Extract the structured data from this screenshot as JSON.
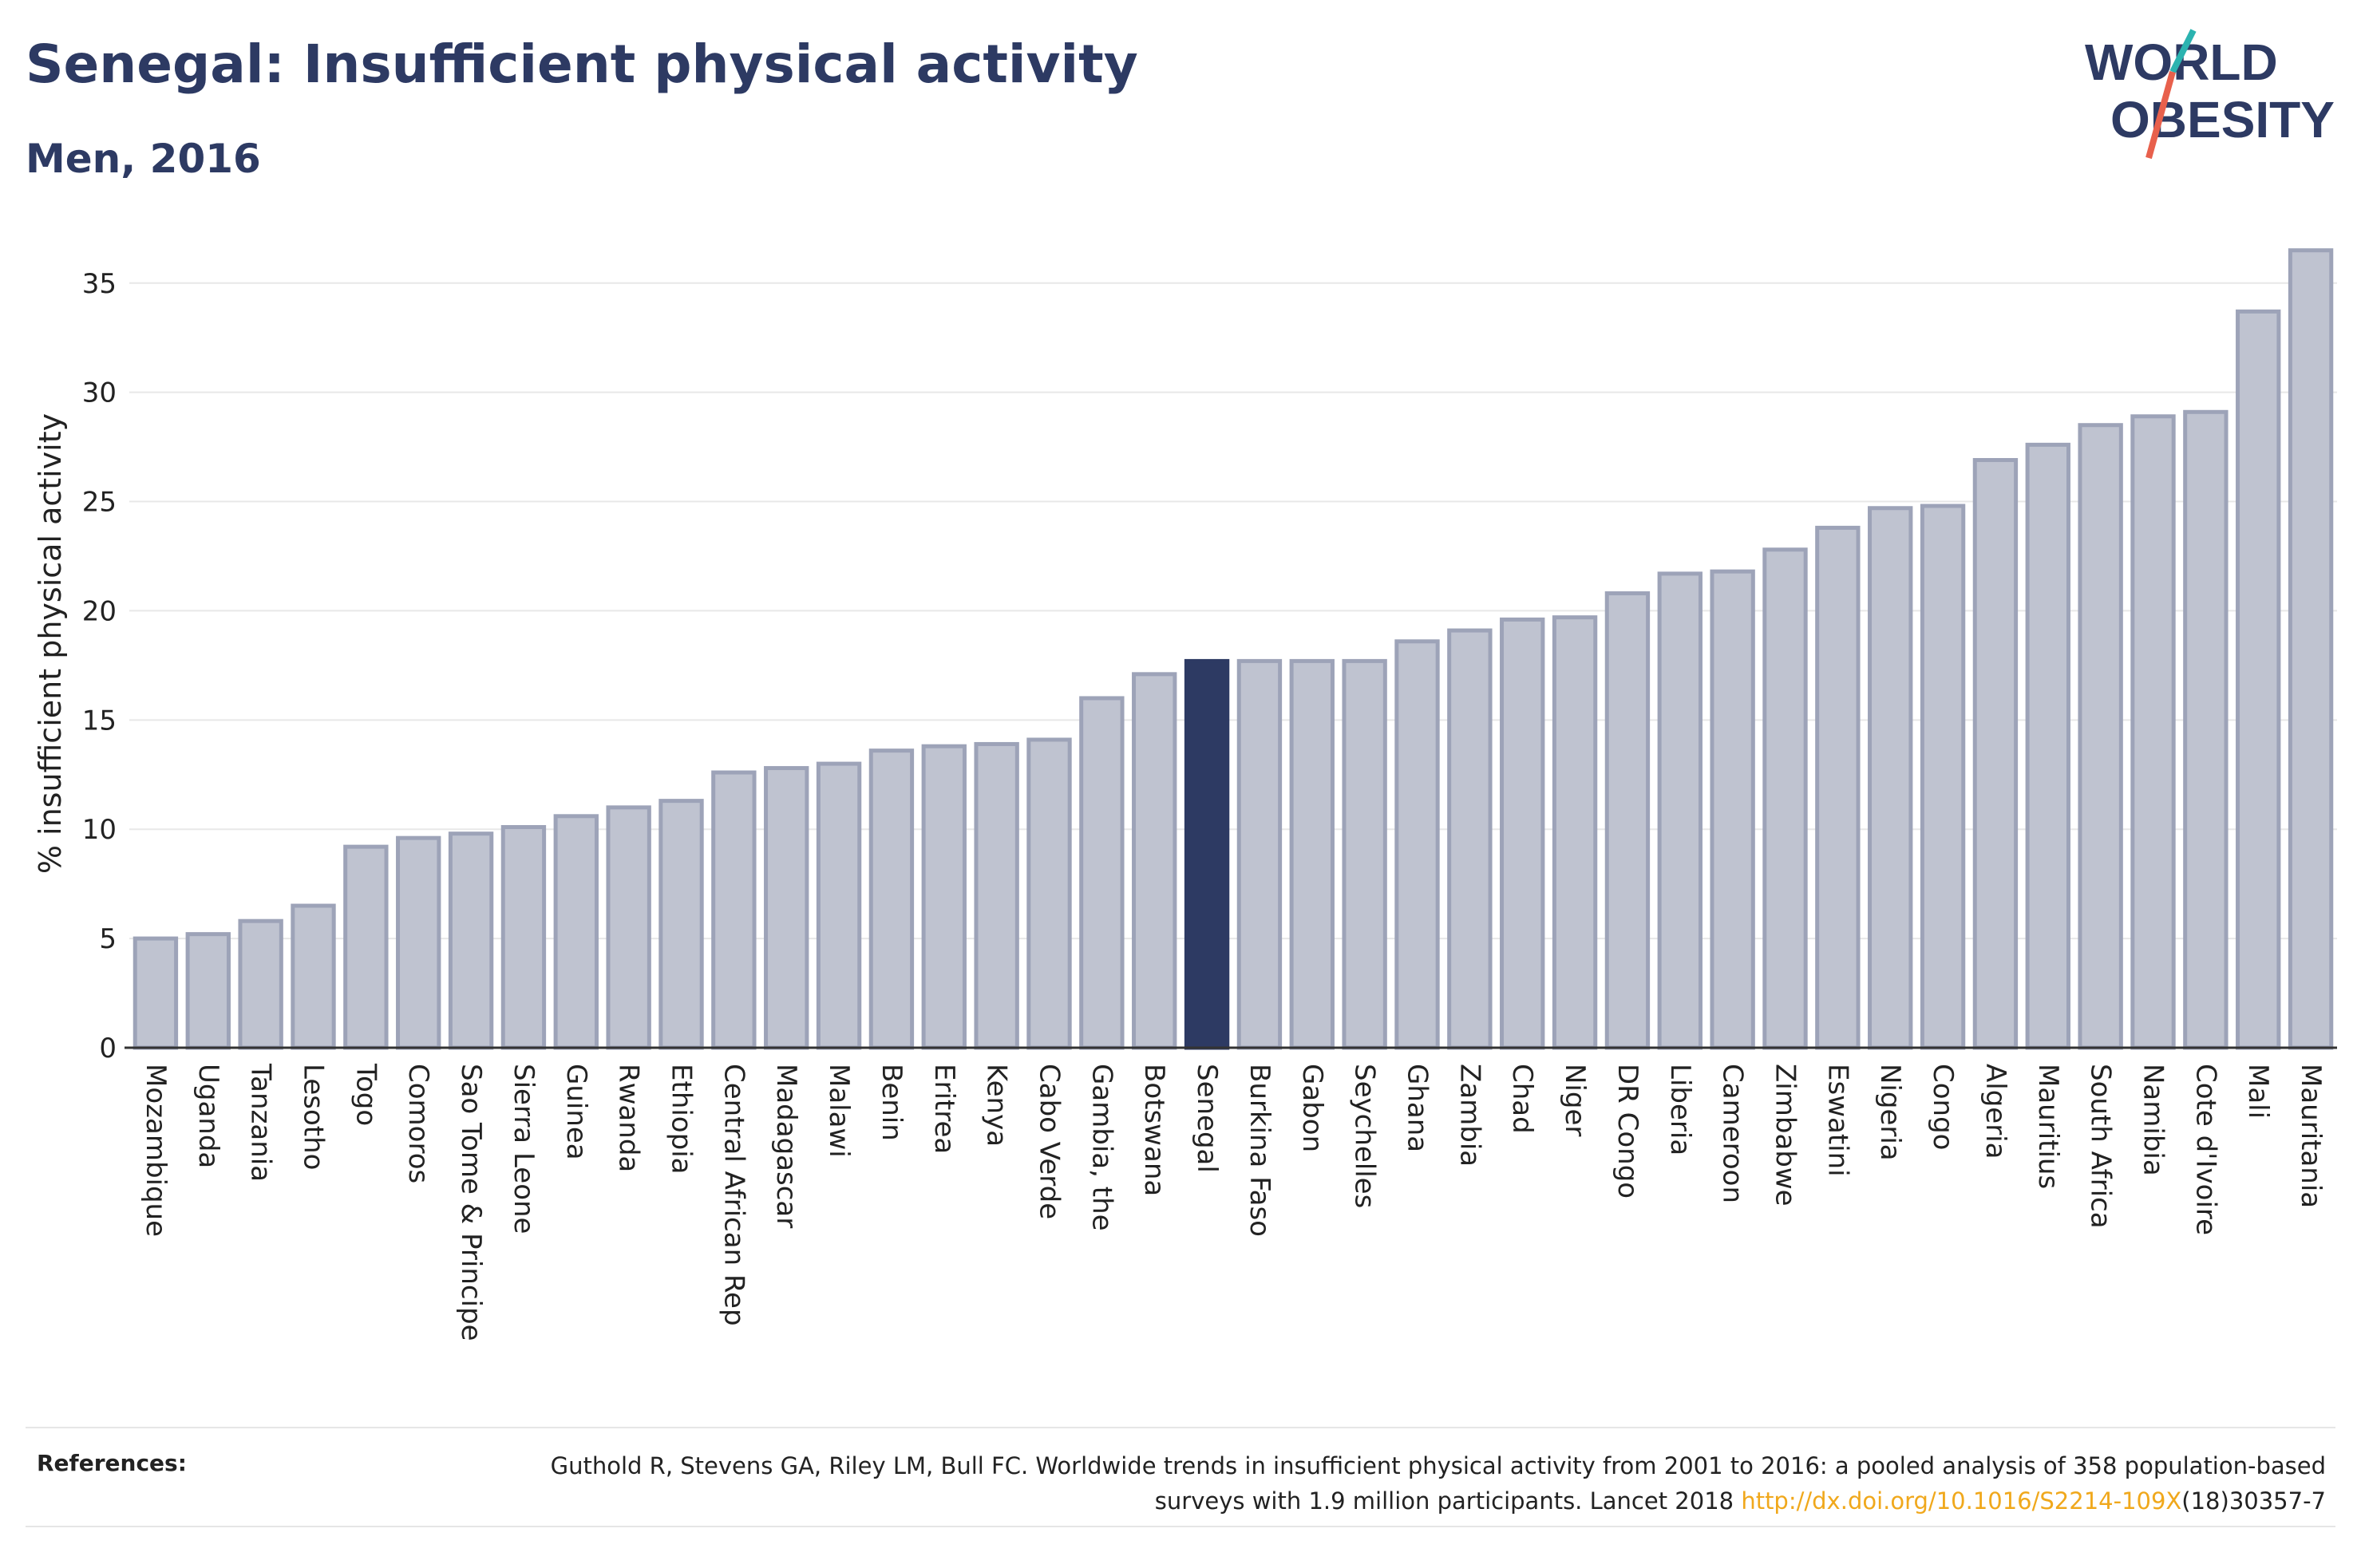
{
  "header": {
    "title": "Senegal: Insufficient physical activity",
    "subtitle": "Men, 2016"
  },
  "logo": {
    "line1": "WORLD",
    "line2": "OBESITY",
    "accent_colors": [
      "#2bb3b0",
      "#e8604c"
    ]
  },
  "chart_data": {
    "type": "bar",
    "ylabel": "% insufficient physical activity",
    "xlabel": "",
    "ylim": [
      0,
      37
    ],
    "yticks": [
      0,
      5,
      10,
      15,
      20,
      25,
      30,
      35
    ],
    "grid": true,
    "highlight": "Senegal",
    "colors": {
      "bar": "#bfc3d0",
      "bar_border": "#9da3b8",
      "highlight": "#2d3a63"
    },
    "categories": [
      "Mozambique",
      "Uganda",
      "Tanzania",
      "Lesotho",
      "Togo",
      "Comoros",
      "Sao Tome & Principe",
      "Sierra Leone",
      "Guinea",
      "Rwanda",
      "Ethiopia",
      "Central African Rep",
      "Madagascar",
      "Malawi",
      "Benin",
      "Eritrea",
      "Kenya",
      "Cabo Verde",
      "Gambia, the",
      "Botswana",
      "Senegal",
      "Burkina Faso",
      "Gabon",
      "Seychelles",
      "Ghana",
      "Zambia",
      "Chad",
      "Niger",
      "DR Congo",
      "Liberia",
      "Cameroon",
      "Zimbabwe",
      "Eswatini",
      "Nigeria",
      "Congo",
      "Algeria",
      "Mauritius",
      "South Africa",
      "Namibia",
      "Cote d'Ivoire",
      "Mali",
      "Mauritania"
    ],
    "values": [
      5.0,
      5.2,
      5.8,
      6.5,
      9.2,
      9.6,
      9.8,
      10.1,
      10.6,
      11.0,
      11.3,
      12.6,
      12.8,
      13.0,
      13.6,
      13.8,
      13.9,
      14.1,
      16.0,
      17.1,
      17.7,
      17.7,
      17.7,
      17.7,
      18.6,
      19.1,
      19.6,
      19.7,
      20.8,
      21.7,
      21.8,
      22.8,
      23.8,
      24.7,
      24.8,
      26.9,
      27.6,
      28.5,
      28.9,
      29.1,
      33.7,
      36.5
    ]
  },
  "references": {
    "label": "References:",
    "text_before_link": "Guthold R, Stevens GA, Riley LM, Bull FC. Worldwide trends in insufficient physical activity from 2001 to 2016: a pooled analysis of 358 population-based surveys with 1.9 million participants. Lancet 2018 ",
    "link": "http://dx.doi.org/10.1016/S2214-109X",
    "text_after_link": "(18)30357-7"
  }
}
